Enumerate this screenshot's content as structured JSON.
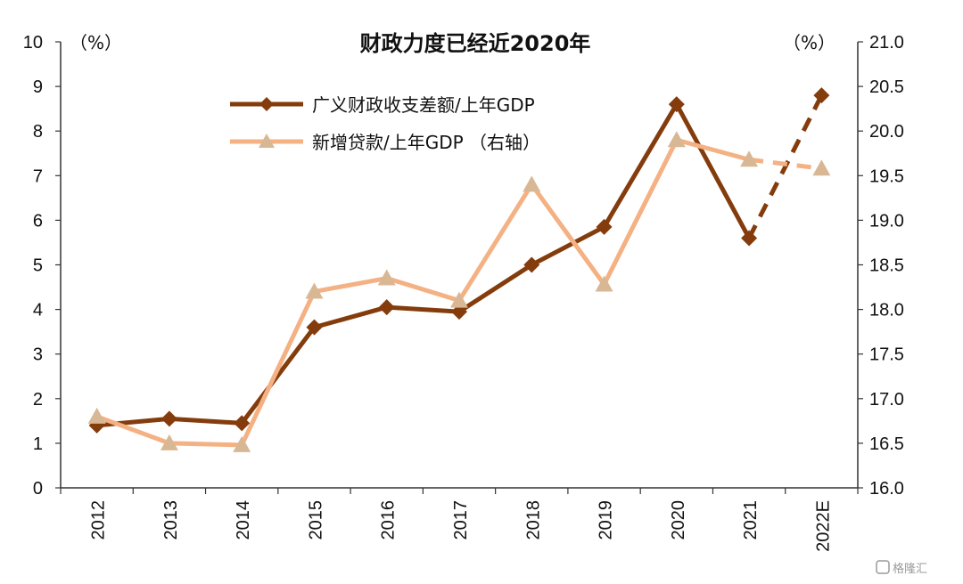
{
  "chart_data": {
    "type": "line",
    "title": "财政力度已经近2020年",
    "left_unit": "（%）",
    "right_unit": "（%）",
    "categories": [
      "2012",
      "2013",
      "2014",
      "2015",
      "2016",
      "2017",
      "2018",
      "2019",
      "2020",
      "2021",
      "2022E"
    ],
    "left_axis": {
      "min": 0,
      "max": 10,
      "step": 1,
      "ticks": [
        "0",
        "1",
        "2",
        "3",
        "4",
        "5",
        "6",
        "7",
        "8",
        "9",
        "10"
      ]
    },
    "right_axis": {
      "min": 16.0,
      "max": 21.0,
      "step": 0.5,
      "ticks": [
        "16.0",
        "16.5",
        "17.0",
        "17.5",
        "18.0",
        "18.5",
        "19.0",
        "19.5",
        "20.0",
        "20.5",
        "21.0"
      ]
    },
    "series": [
      {
        "name": "广义财政收支差额/上年GDP",
        "axis": "left",
        "color": "#843c0c",
        "marker": "diamond",
        "values": [
          1.4,
          1.55,
          1.45,
          3.6,
          4.05,
          3.95,
          5.0,
          5.85,
          8.6,
          5.6,
          8.8
        ],
        "dashed_from_index": 9
      },
      {
        "name": "新增贷款/上年GDP （右轴）",
        "axis": "right",
        "color": "#f4b183",
        "marker_color": "#d8b894",
        "marker": "triangle",
        "values": [
          16.8,
          16.5,
          16.48,
          18.2,
          18.35,
          18.1,
          19.4,
          18.28,
          19.9,
          19.68,
          19.58
        ],
        "dashed_from_index": 9
      }
    ],
    "grid": false,
    "legend_position": "top-center"
  },
  "watermark": {
    "icon": "gelonghui-logo-icon",
    "text": "格隆汇"
  }
}
